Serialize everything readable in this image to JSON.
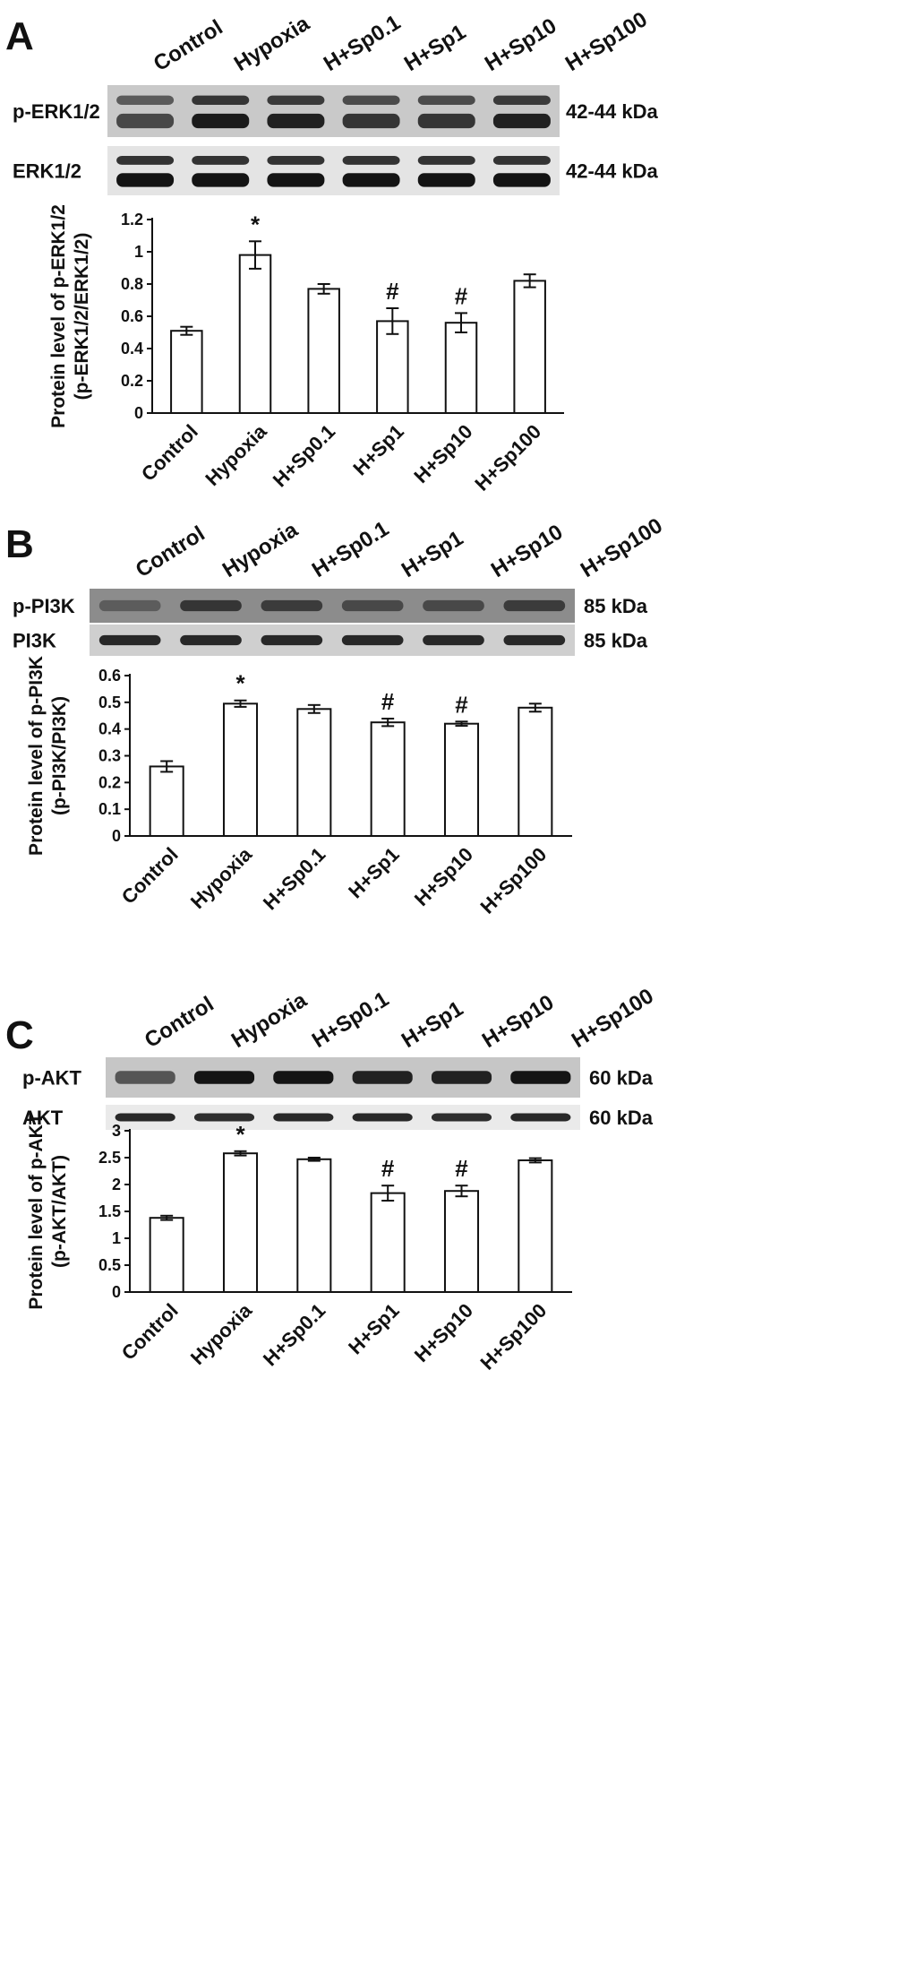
{
  "panels": [
    {
      "letter": "A",
      "lanes": [
        "Control",
        "Hypoxia",
        "H+Sp0.1",
        "H+Sp1",
        "H+Sp10",
        "H+Sp100"
      ],
      "blots": [
        {
          "label": "p-ERK1/2",
          "size": "42-44 kDa",
          "bands": 2,
          "gray": "#c9c9c9",
          "intensities": [
            0.6,
            0.95,
            0.9,
            0.75,
            0.75,
            0.9
          ]
        },
        {
          "label": "ERK1/2",
          "size": "42-44 kDa",
          "bands": 2,
          "gray": "#e4e4e4",
          "intensities": [
            1,
            1,
            1,
            1,
            1,
            1
          ]
        }
      ]
    },
    {
      "letter": "B",
      "lanes": [
        "Control",
        "Hypoxia",
        "H+Sp0.1",
        "H+Sp1",
        "H+Sp10",
        "H+Sp100"
      ],
      "blots": [
        {
          "label": "p-PI3K",
          "size": "85 kDa",
          "bands": 1,
          "gray": "#8c8c8c",
          "intensities": [
            0.45,
            0.75,
            0.7,
            0.6,
            0.6,
            0.7
          ]
        },
        {
          "label": "PI3K",
          "size": "85 kDa",
          "bands": 1,
          "gray": "#cfcfcf",
          "intensities": [
            0.85,
            0.85,
            0.85,
            0.85,
            0.85,
            0.85
          ]
        }
      ]
    },
    {
      "letter": "C",
      "lanes": [
        "Control",
        "Hypoxia",
        "H+Sp0.1",
        "H+Sp1",
        "H+Sp10",
        "H+Sp100"
      ],
      "blots": [
        {
          "label": "p-AKT",
          "size": "60 kDa",
          "bands": 1,
          "gray": "#c6c6c6",
          "intensities": [
            0.5,
            1,
            1,
            0.9,
            0.9,
            1
          ]
        },
        {
          "label": "AKT",
          "size": "60 kDa",
          "bands": 1,
          "gray": "#eaeaea",
          "intensities": [
            0.85,
            0.8,
            0.85,
            0.85,
            0.8,
            0.85
          ]
        }
      ]
    }
  ],
  "chart_data": [
    {
      "type": "bar",
      "categories": [
        "Control",
        "Hypoxia",
        "H+Sp0.1",
        "H+Sp1",
        "H+Sp10",
        "H+Sp100"
      ],
      "values": [
        0.51,
        0.98,
        0.77,
        0.57,
        0.56,
        0.82
      ],
      "errors": [
        0.025,
        0.085,
        0.03,
        0.08,
        0.06,
        0.04
      ],
      "markers": [
        "",
        "*",
        "",
        "#",
        "#",
        ""
      ],
      "ylabel": [
        "Protein level of p-ERK1/2",
        "(p-ERK1/2/ERK1/2)"
      ],
      "ylim": [
        0,
        1.2
      ],
      "yticks": [
        "0",
        "0.2",
        "0.4",
        "0.6",
        "0.8",
        "1",
        "1.2"
      ],
      "grid": false,
      "bar_color": "#ffffff"
    },
    {
      "type": "bar",
      "categories": [
        "Control",
        "Hypoxia",
        "H+Sp0.1",
        "H+Sp1",
        "H+Sp10",
        "H+Sp100"
      ],
      "values": [
        0.26,
        0.495,
        0.475,
        0.425,
        0.42,
        0.48
      ],
      "errors": [
        0.02,
        0.012,
        0.015,
        0.014,
        0.008,
        0.015
      ],
      "markers": [
        "",
        "*",
        "",
        "#",
        "#",
        ""
      ],
      "ylabel": [
        "Protein level of p-PI3K",
        "(p-PI3K/PI3K)"
      ],
      "ylim": [
        0,
        0.6
      ],
      "yticks": [
        "0",
        "0.1",
        "0.2",
        "0.3",
        "0.4",
        "0.5",
        "0.6"
      ],
      "grid": false,
      "bar_color": "#ffffff"
    },
    {
      "type": "bar",
      "categories": [
        "Control",
        "Hypoxia",
        "H+Sp0.1",
        "H+Sp1",
        "H+Sp10",
        "H+Sp100"
      ],
      "values": [
        1.38,
        2.58,
        2.47,
        1.84,
        1.88,
        2.45
      ],
      "errors": [
        0.04,
        0.04,
        0.03,
        0.14,
        0.1,
        0.04
      ],
      "markers": [
        "",
        "*",
        "",
        "#",
        "#",
        ""
      ],
      "ylabel": [
        "Protein level of p-AKT",
        "(p-AKT/AKT)"
      ],
      "ylim": [
        0,
        3
      ],
      "yticks": [
        "0",
        "0.5",
        "1",
        "1.5",
        "2",
        "2.5",
        "3"
      ],
      "grid": false,
      "bar_color": "#ffffff"
    }
  ]
}
